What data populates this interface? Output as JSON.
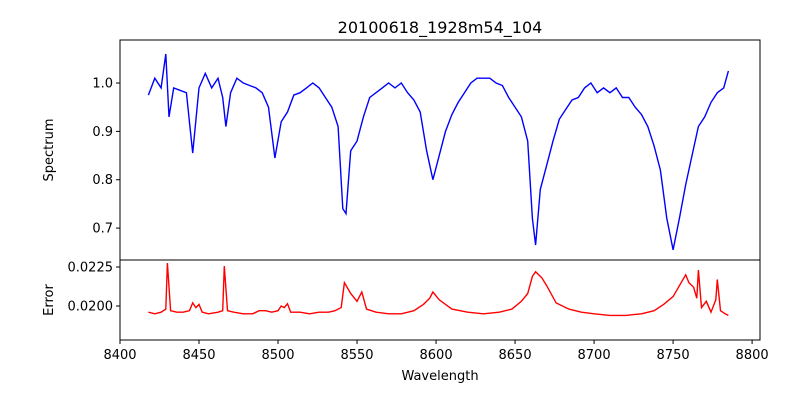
{
  "chart_data": [
    {
      "type": "line",
      "title": "20100618_1928m54_104",
      "xlabel": "",
      "ylabel": "Spectrum",
      "color": "#0000ff",
      "xlim": [
        8400,
        8805
      ],
      "ylim": [
        0.634,
        1.089
      ],
      "yticks": [
        0.7,
        0.8,
        0.9,
        1.0
      ],
      "ytick_labels": [
        "0.7",
        "0.8",
        "0.9",
        "1.0"
      ],
      "x": [
        8418,
        8422,
        8426,
        8429,
        8431,
        8434,
        8438,
        8442,
        8446,
        8450,
        8454,
        8458,
        8462,
        8465,
        8467,
        8470,
        8474,
        8478,
        8482,
        8486,
        8490,
        8494,
        8498,
        8502,
        8506,
        8510,
        8514,
        8518,
        8522,
        8526,
        8530,
        8534,
        8538,
        8541,
        8543,
        8546,
        8550,
        8554,
        8558,
        8562,
        8566,
        8570,
        8574,
        8578,
        8582,
        8586,
        8590,
        8594,
        8598,
        8602,
        8606,
        8610,
        8614,
        8618,
        8622,
        8626,
        8630,
        8634,
        8638,
        8642,
        8646,
        8650,
        8654,
        8658,
        8661,
        8663,
        8666,
        8670,
        8674,
        8678,
        8682,
        8686,
        8690,
        8694,
        8698,
        8702,
        8706,
        8710,
        8714,
        8718,
        8722,
        8726,
        8730,
        8734,
        8738,
        8742,
        8746,
        8750,
        8754,
        8758,
        8762,
        8766,
        8770,
        8774,
        8778,
        8782,
        8785
      ],
      "y": [
        0.975,
        1.01,
        0.99,
        1.06,
        0.93,
        0.99,
        0.985,
        0.98,
        0.855,
        0.99,
        1.02,
        0.99,
        1.01,
        0.97,
        0.91,
        0.98,
        1.01,
        1.0,
        0.995,
        0.99,
        0.98,
        0.95,
        0.845,
        0.92,
        0.94,
        0.975,
        0.98,
        0.99,
        1.0,
        0.99,
        0.97,
        0.95,
        0.91,
        0.74,
        0.73,
        0.86,
        0.88,
        0.93,
        0.97,
        0.98,
        0.99,
        1.0,
        0.99,
        1.0,
        0.98,
        0.965,
        0.94,
        0.86,
        0.8,
        0.85,
        0.9,
        0.935,
        0.96,
        0.98,
        1.0,
        1.01,
        1.01,
        1.01,
        1.0,
        0.995,
        0.97,
        0.95,
        0.93,
        0.88,
        0.72,
        0.665,
        0.78,
        0.83,
        0.88,
        0.925,
        0.945,
        0.965,
        0.97,
        0.99,
        1.0,
        0.98,
        0.99,
        0.98,
        0.99,
        0.97,
        0.97,
        0.95,
        0.935,
        0.91,
        0.87,
        0.82,
        0.72,
        0.655,
        0.72,
        0.79,
        0.85,
        0.91,
        0.93,
        0.96,
        0.98,
        0.99,
        1.025
      ]
    },
    {
      "type": "line",
      "xlabel": "Wavelength",
      "ylabel": "Error",
      "color": "#ff0000",
      "xlim": [
        8400,
        8805
      ],
      "ylim": [
        0.01782,
        0.02295
      ],
      "yticks": [
        0.02,
        0.0225
      ],
      "ytick_labels": [
        "0.0200",
        "0.0225"
      ],
      "xticks": [
        8400,
        8450,
        8500,
        8550,
        8600,
        8650,
        8700,
        8750,
        8800
      ],
      "xtick_labels": [
        "8400",
        "8450",
        "8500",
        "8550",
        "8600",
        "8650",
        "8700",
        "8750",
        "8800"
      ],
      "x": [
        8418,
        8422,
        8426,
        8429,
        8430,
        8432,
        8436,
        8440,
        8444,
        8446,
        8448,
        8450,
        8452,
        8456,
        8462,
        8465,
        8466,
        8468,
        8472,
        8478,
        8484,
        8488,
        8492,
        8496,
        8500,
        8502,
        8504,
        8506,
        8508,
        8514,
        8520,
        8526,
        8532,
        8536,
        8540,
        8542,
        8546,
        8550,
        8553,
        8556,
        8562,
        8570,
        8578,
        8586,
        8592,
        8596,
        8598,
        8602,
        8610,
        8620,
        8630,
        8640,
        8648,
        8654,
        8658,
        8661,
        8663,
        8667,
        8670,
        8676,
        8684,
        8692,
        8700,
        8710,
        8720,
        8730,
        8738,
        8744,
        8750,
        8754,
        8758,
        8760,
        8763,
        8765,
        8766,
        8768,
        8771,
        8774,
        8777,
        8778,
        8780,
        8783,
        8785
      ],
      "y": [
        0.0196,
        0.0195,
        0.0196,
        0.0198,
        0.02276,
        0.0197,
        0.0196,
        0.0196,
        0.0197,
        0.0202,
        0.0199,
        0.0201,
        0.0196,
        0.0195,
        0.0196,
        0.0197,
        0.02256,
        0.0197,
        0.0196,
        0.0195,
        0.0195,
        0.0197,
        0.0197,
        0.0196,
        0.0197,
        0.02,
        0.0199,
        0.02015,
        0.0196,
        0.0196,
        0.0195,
        0.0196,
        0.0196,
        0.0197,
        0.0199,
        0.0215,
        0.0208,
        0.0203,
        0.0209,
        0.0198,
        0.0196,
        0.0195,
        0.0195,
        0.0197,
        0.0201,
        0.0205,
        0.0209,
        0.0204,
        0.0198,
        0.0196,
        0.0195,
        0.0196,
        0.0198,
        0.0203,
        0.0208,
        0.0219,
        0.0222,
        0.0218,
        0.0213,
        0.0202,
        0.0198,
        0.0196,
        0.0195,
        0.0194,
        0.0194,
        0.0195,
        0.0197,
        0.0201,
        0.0206,
        0.0213,
        0.022,
        0.0215,
        0.0212,
        0.0205,
        0.0223,
        0.0199,
        0.0203,
        0.0196,
        0.0204,
        0.0217,
        0.0197,
        0.0195,
        0.0194
      ]
    }
  ]
}
